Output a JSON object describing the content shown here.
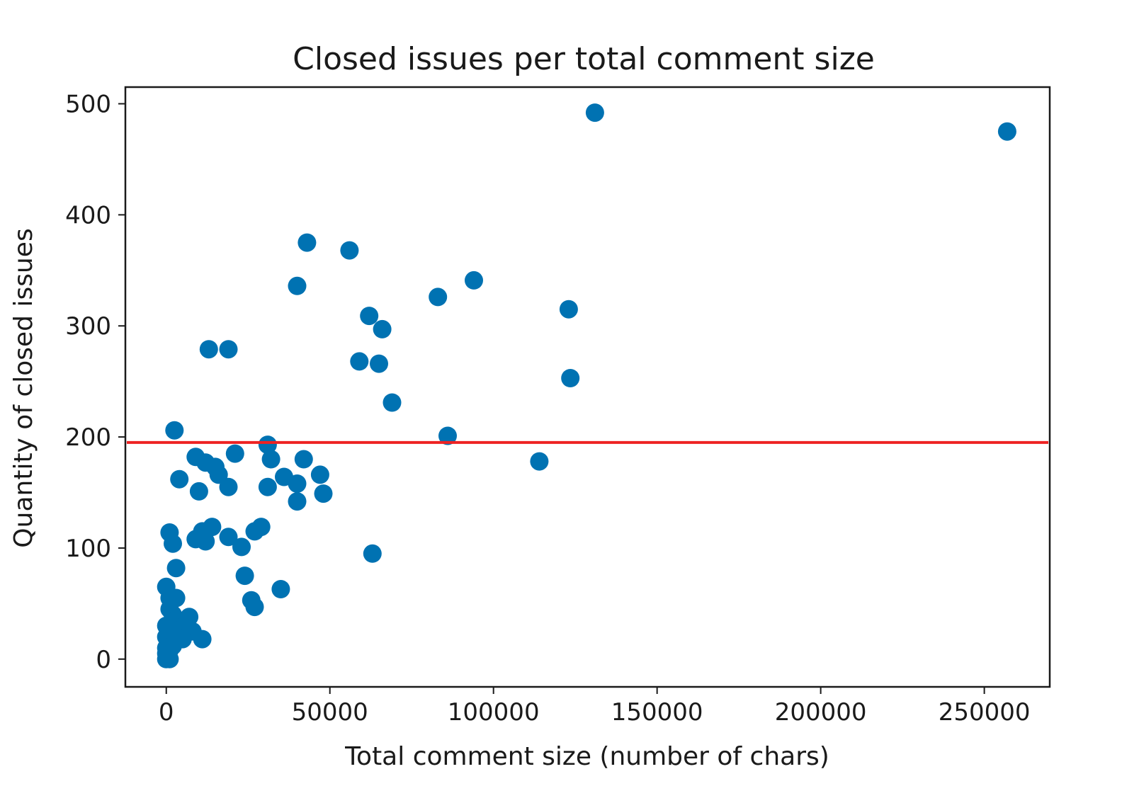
{
  "chart_data": {
    "type": "scatter",
    "title": "Closed issues per total comment size",
    "xlabel": "Total comment size (number of chars)",
    "ylabel": "Quantity of closed issues",
    "xlim": [
      -12500,
      270000
    ],
    "ylim": [
      -25,
      515
    ],
    "xticks": [
      0,
      50000,
      100000,
      150000,
      200000,
      250000
    ],
    "yticks": [
      0,
      100,
      200,
      300,
      400,
      500
    ],
    "grid": false,
    "point_color": "#0072b2",
    "reference_line": {
      "y": 195,
      "color": "#ee2222"
    },
    "points": [
      [
        131000,
        492
      ],
      [
        257000,
        475
      ],
      [
        43000,
        375
      ],
      [
        56000,
        368
      ],
      [
        40000,
        336
      ],
      [
        94000,
        341
      ],
      [
        83000,
        326
      ],
      [
        123000,
        315
      ],
      [
        62000,
        309
      ],
      [
        66000,
        297
      ],
      [
        13000,
        279
      ],
      [
        19000,
        279
      ],
      [
        59000,
        268
      ],
      [
        65000,
        266
      ],
      [
        123500,
        253
      ],
      [
        69000,
        231
      ],
      [
        2500,
        206
      ],
      [
        86000,
        201
      ],
      [
        31000,
        193
      ],
      [
        9000,
        182
      ],
      [
        12000,
        177
      ],
      [
        15000,
        173
      ],
      [
        21000,
        185
      ],
      [
        32000,
        180
      ],
      [
        42000,
        180
      ],
      [
        114000,
        178
      ],
      [
        4000,
        162
      ],
      [
        16000,
        166
      ],
      [
        19000,
        155
      ],
      [
        10000,
        151
      ],
      [
        31000,
        155
      ],
      [
        36000,
        164
      ],
      [
        40000,
        158
      ],
      [
        47000,
        166
      ],
      [
        48000,
        149
      ],
      [
        40000,
        142
      ],
      [
        1000,
        114
      ],
      [
        2000,
        104
      ],
      [
        9000,
        108
      ],
      [
        11000,
        115
      ],
      [
        12000,
        106
      ],
      [
        14000,
        119
      ],
      [
        19000,
        110
      ],
      [
        23000,
        101
      ],
      [
        27000,
        115
      ],
      [
        29000,
        119
      ],
      [
        63000,
        95
      ],
      [
        3000,
        82
      ],
      [
        24000,
        75
      ],
      [
        35000,
        63
      ],
      [
        26000,
        53
      ],
      [
        27000,
        47
      ],
      [
        0,
        65
      ],
      [
        1000,
        55
      ],
      [
        3000,
        55
      ],
      [
        1000,
        45
      ],
      [
        2000,
        40
      ],
      [
        3000,
        35
      ],
      [
        4000,
        30
      ],
      [
        5000,
        28
      ],
      [
        6000,
        32
      ],
      [
        7000,
        38
      ],
      [
        8000,
        25
      ],
      [
        11000,
        18
      ],
      [
        0,
        30
      ],
      [
        0,
        20
      ],
      [
        1000,
        20
      ],
      [
        2000,
        25
      ],
      [
        3000,
        20
      ],
      [
        5000,
        18
      ],
      [
        0,
        10
      ],
      [
        0,
        5
      ],
      [
        0,
        0
      ],
      [
        1000,
        0
      ],
      [
        1000,
        8
      ],
      [
        2000,
        12
      ]
    ]
  }
}
